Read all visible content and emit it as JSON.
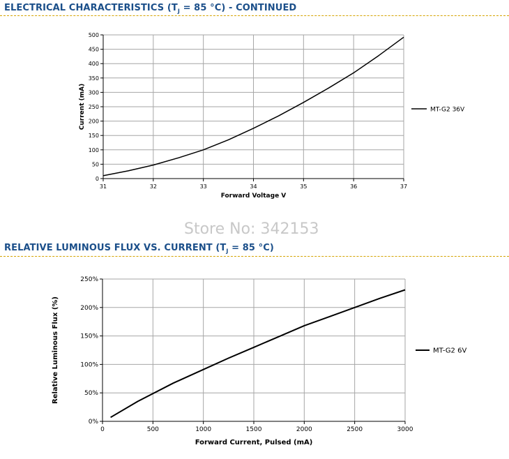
{
  "section1": {
    "title_pre": "ELECTRICAL CHARACTERISTICS (T",
    "title_sub": "J",
    "title_post": " = 85 °C) - CONTINUED"
  },
  "watermark": "Store No: 342153",
  "section2": {
    "title_pre": "RELATIVE LUMINOUS FLUX VS. CURRENT (T",
    "title_sub": "J",
    "title_post": " = 85 °C)"
  },
  "chart_data": [
    {
      "type": "line",
      "xlabel": "Forward Voltage V",
      "ylabel": "Current (mA)",
      "xlim": [
        31,
        37
      ],
      "ylim": [
        0,
        500
      ],
      "x_ticks": [
        "31",
        "32",
        "33",
        "34",
        "35",
        "36",
        "37"
      ],
      "y_ticks": [
        "0",
        "50",
        "100",
        "150",
        "200",
        "250",
        "300",
        "350",
        "400",
        "450",
        "500"
      ],
      "grid": true,
      "legend_position": "right",
      "series": [
        {
          "name": "MT-G2 36V",
          "color": "#000000",
          "x": [
            31,
            31.5,
            32,
            32.5,
            33,
            33.5,
            34,
            34.5,
            35,
            35.5,
            36,
            36.5,
            37
          ],
          "y": [
            10,
            27,
            47,
            72,
            100,
            135,
            175,
            218,
            265,
            315,
            368,
            428,
            492
          ]
        }
      ]
    },
    {
      "type": "line",
      "xlabel": "Forward Current, Pulsed (mA)",
      "ylabel": "Relative Luminous Flux (%)",
      "xlim": [
        0,
        3000
      ],
      "ylim": [
        0,
        250
      ],
      "x_ticks": [
        "0",
        "500",
        "1000",
        "1500",
        "2000",
        "2500",
        "3000"
      ],
      "y_ticks": [
        "0%",
        "50%",
        "100%",
        "150%",
        "200%",
        "250%"
      ],
      "grid": true,
      "legend_position": "right",
      "series": [
        {
          "name": "MT-G2 6V",
          "color": "#000000",
          "x": [
            80,
            350,
            700,
            1000,
            1250,
            1500,
            1750,
            2000,
            2250,
            2500,
            2750,
            3000
          ],
          "y": [
            7,
            35,
            67,
            91,
            111,
            130,
            149,
            168,
            184,
            200,
            216,
            231
          ]
        }
      ]
    }
  ]
}
